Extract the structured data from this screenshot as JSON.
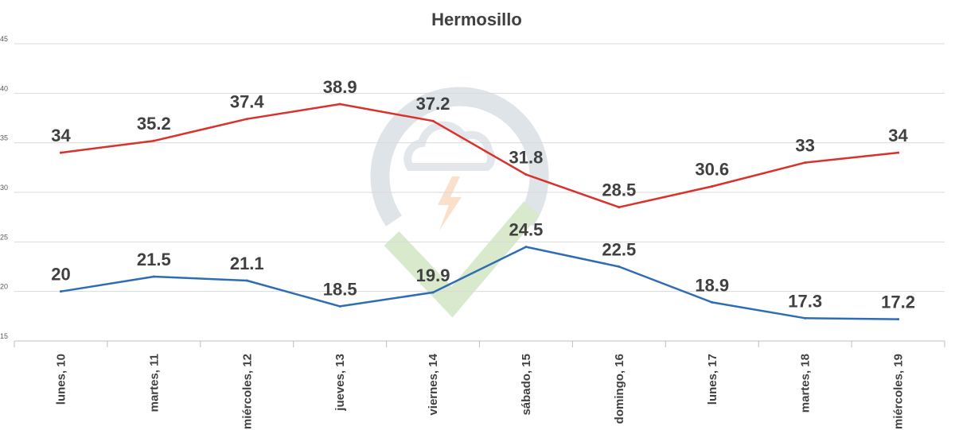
{
  "chart_data": {
    "type": "line",
    "title": "Hermosillo",
    "xlabel": "",
    "ylabel": "",
    "ylim": [
      15,
      45
    ],
    "yticks": [
      15,
      20,
      25,
      30,
      35,
      40,
      45
    ],
    "grid": true,
    "categories": [
      "lunes, 10",
      "martes, 11",
      "miércoles, 12",
      "jueves, 13",
      "viernes, 14",
      "sábado, 15",
      "domingo, 16",
      "lunes, 17",
      "martes, 18",
      "miércoles, 19"
    ],
    "series": [
      {
        "values": [
          34,
          35.2,
          37.4,
          38.9,
          37.2,
          31.8,
          28.5,
          30.6,
          33,
          34
        ],
        "labels": [
          "34",
          "35.2",
          "37.4",
          "38.9",
          "37.2",
          "31.8",
          "28.5",
          "30.6",
          "33",
          "34"
        ],
        "color": "#d9312b"
      },
      {
        "values": [
          20,
          21.5,
          21.1,
          18.5,
          19.9,
          24.5,
          22.5,
          18.9,
          17.3,
          17.2
        ],
        "labels": [
          "20",
          "21.5",
          "21.1",
          "18.5",
          "19.9",
          "24.5",
          "22.5",
          "18.9",
          "17.3",
          "17.2"
        ],
        "color": "#2e6db4"
      }
    ]
  },
  "watermark": {
    "icon": "cloud-lightning-check-logo",
    "colors": [
      "#b9c4cf",
      "#f4a460",
      "#8dbb6b"
    ]
  }
}
